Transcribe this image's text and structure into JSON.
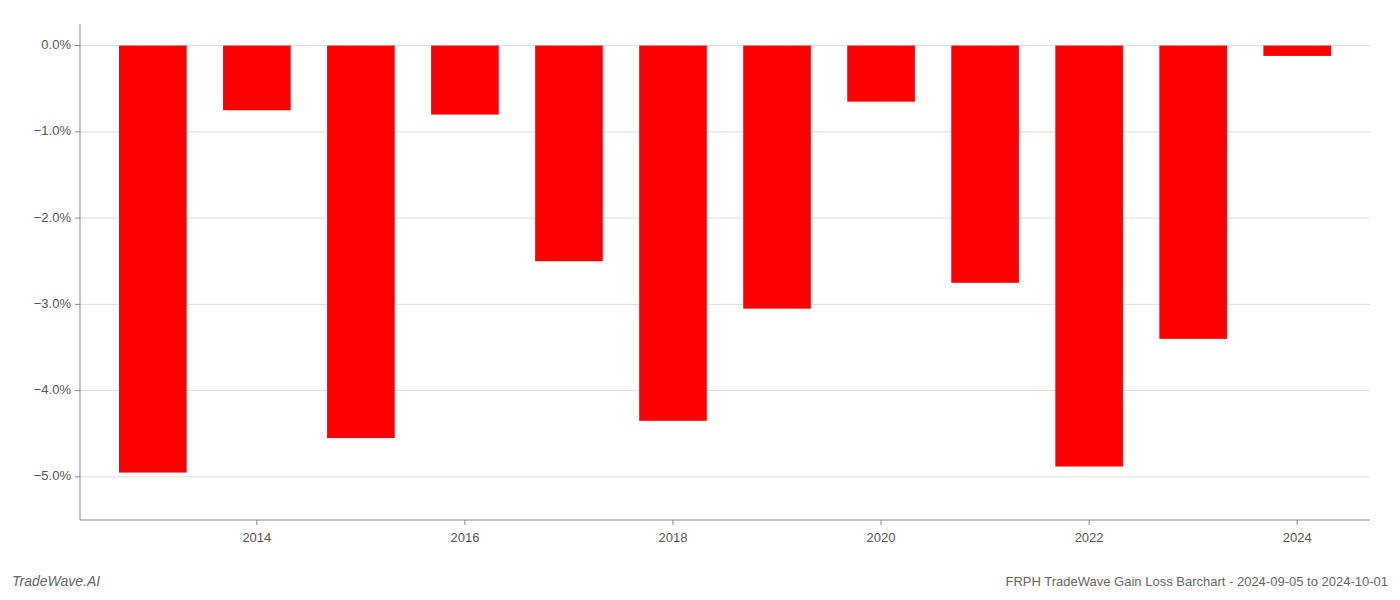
{
  "chart_data": {
    "type": "bar",
    "title": "FRPH TradeWave Gain Loss Barchart - 2024-09-05 to 2024-10-01",
    "annotations": [
      "TradeWave.AI"
    ],
    "x": [
      2013,
      2014,
      2015,
      2016,
      2017,
      2018,
      2019,
      2020,
      2021,
      2022,
      2023,
      2024
    ],
    "values": [
      -4.95,
      -0.75,
      -4.55,
      -0.8,
      -2.5,
      -4.35,
      -3.05,
      -0.65,
      -2.75,
      -4.88,
      -3.4,
      -0.12
    ],
    "color": "#ff0000",
    "xlim": [
      2012.3,
      2024.7
    ],
    "xticks": [
      2014,
      2016,
      2018,
      2020,
      2022,
      2024
    ],
    "ylim": [
      -5.5,
      0.25
    ],
    "yticks": [
      {
        "value": 0.0,
        "label": "0.0%"
      },
      {
        "value": -1.0,
        "label": "−1.0%"
      },
      {
        "value": -2.0,
        "label": "−2.0%"
      },
      {
        "value": -3.0,
        "label": "−3.0%"
      },
      {
        "value": -4.0,
        "label": "−4.0%"
      },
      {
        "value": -5.0,
        "label": "−5.0%"
      }
    ],
    "grid": true
  }
}
